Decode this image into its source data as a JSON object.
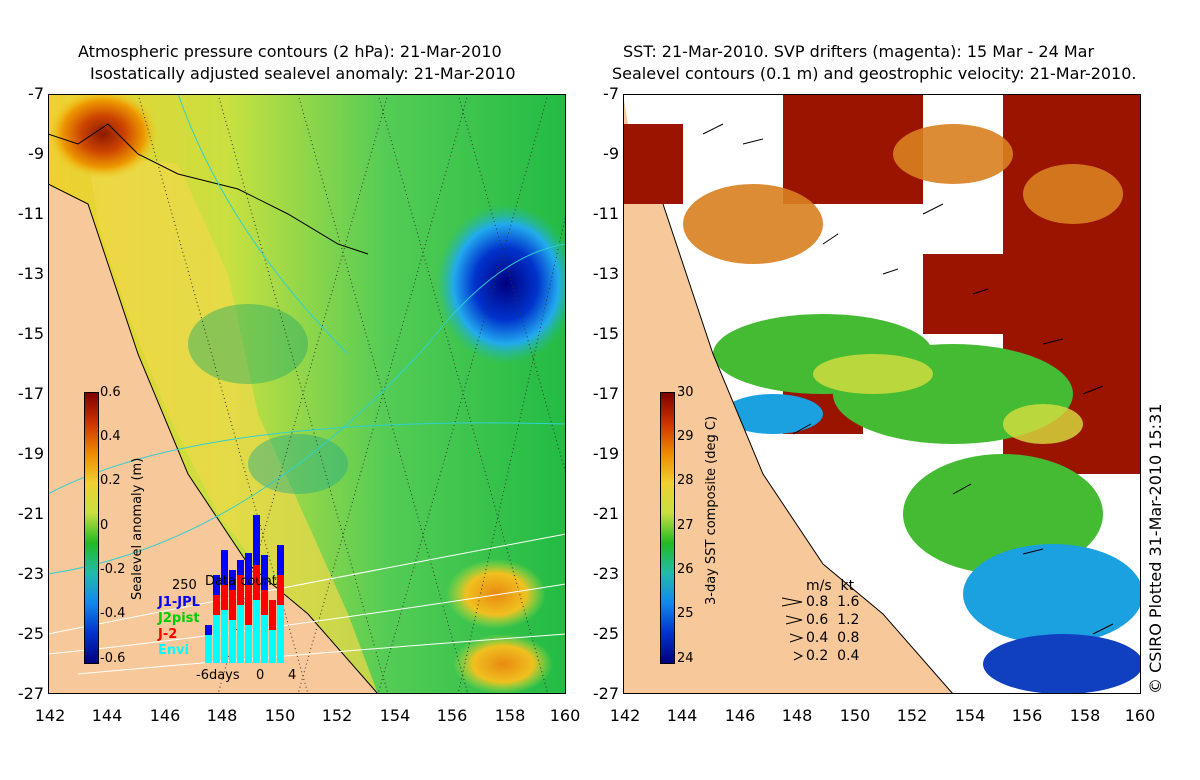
{
  "left_title": {
    "line1": "Atmospheric pressure contours (2 hPa): 21-Mar-2010",
    "line2": "Isostatically adjusted sealevel anomaly: 21-Mar-2010"
  },
  "right_title": {
    "line1": "SST: 21-Mar-2010. SVP drifters (magenta): 15 Mar - 24 Mar",
    "line2": "Sealevel contours (0.1 m) and geostrophic velocity: 21-Mar-2010."
  },
  "y_ticks": [
    "-7",
    "-9",
    "-11",
    "-13",
    "-15",
    "-17",
    "-19",
    "-21",
    "-23",
    "-25",
    "-27"
  ],
  "x_ticks": [
    "142",
    "144",
    "146",
    "148",
    "150",
    "152",
    "154",
    "156",
    "158",
    "160"
  ],
  "left_colorbar": {
    "title": "Sealevel anomaly (m)",
    "ticks": [
      "0.6",
      "0.4",
      "0.2",
      "0",
      "-0.2",
      "-0.4",
      "-0.6"
    ]
  },
  "right_colorbar": {
    "title": "3-day SST composite (deg C)",
    "ticks": [
      "30",
      "29",
      "28",
      "27",
      "26",
      "25",
      "24"
    ]
  },
  "data_count_inset": {
    "title": "Data count",
    "max_label": "250",
    "x_labels": [
      "-6days",
      "0",
      "4"
    ],
    "legend": [
      {
        "label": "J1-JPL",
        "color": "#0000ff"
      },
      {
        "label": "J2pist",
        "color": "#00cc00"
      },
      {
        "label": "J-2",
        "color": "#ff0000"
      },
      {
        "label": "Envi",
        "color": "#00ffff"
      }
    ]
  },
  "velocity_legend": {
    "header": "m/s  kt",
    "rows": [
      "0.8  1.6",
      "0.6  1.2",
      "0.4  0.8",
      "0.2  0.4"
    ]
  },
  "credit": "© CSIRO Plotted 31-Mar-2010 15:31",
  "colors": {
    "land": "#f7c89a",
    "sla_low": "#00007f",
    "sla_mid": "#22cc22",
    "sla_high": "#7f0000"
  }
}
